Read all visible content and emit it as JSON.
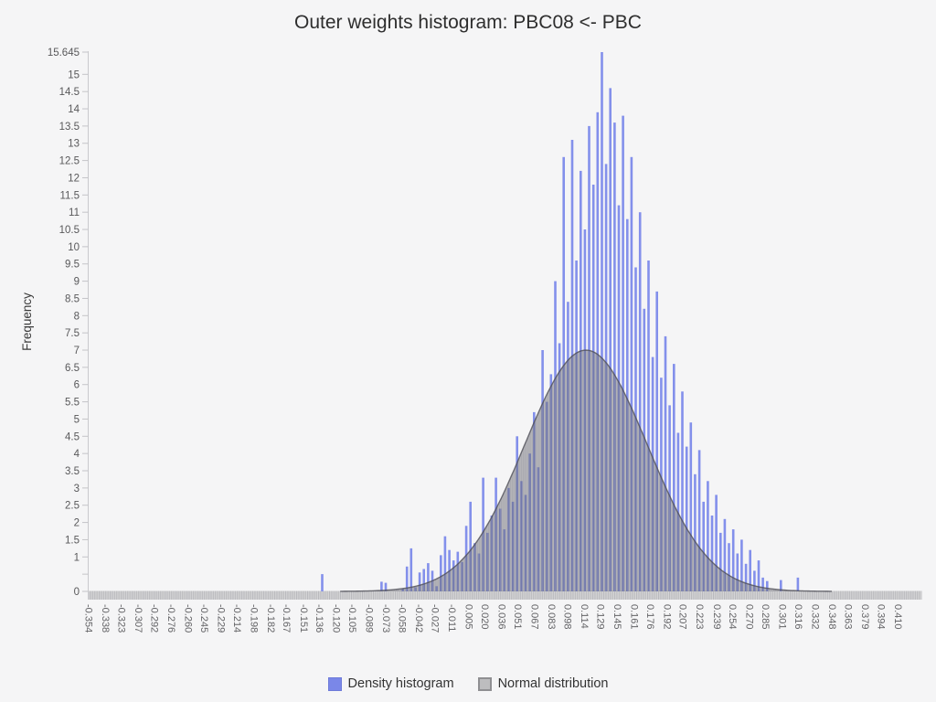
{
  "colors": {
    "background": "#F5F5F6",
    "bar": "#8390EB",
    "bar_legend": "#7A87E8",
    "bar_legend_border": "#6E7BD9",
    "normal_fill": "#ABABB1",
    "normal_fill_rgba": "rgba(98,98,108,0.5)",
    "normal_stripe_rgba": "rgba(255,255,255,0.14)",
    "normal_outline": "#4F4F58",
    "normal_legend": "#BDBDBF",
    "normal_legend_border": "#8F8F92",
    "axis_line": "#C9C9CD",
    "tick_mark": "#C4C4C8",
    "y_tick_label": "#58585A",
    "x_tick_label": "#636366",
    "band_base": "#D4D4D6",
    "band_stripe": "#BABABD",
    "title_text": "#2E2E2E",
    "ylabel_text": "#3A3A3A"
  },
  "legend": [
    {
      "label": "Density histogram"
    },
    {
      "label": "Normal distribution"
    }
  ],
  "chart_data": {
    "type": "bar",
    "title": "Outer weights histogram: PBC08 <- PBC",
    "xlabel": "",
    "ylabel": "Frequency",
    "ylim": [
      0,
      15.645
    ],
    "x_range": [
      -0.354,
      0.41
    ],
    "grid": false,
    "legend_position": "bottom-center",
    "x_tick_labels": [
      "-0.354",
      "-0.338",
      "-0.323",
      "-0.307",
      "-0.292",
      "-0.276",
      "-0.260",
      "-0.245",
      "-0.229",
      "-0.214",
      "-0.198",
      "-0.182",
      "-0.167",
      "-0.151",
      "-0.136",
      "-0.120",
      "-0.105",
      "-0.089",
      "-0.073",
      "-0.058",
      "-0.042",
      "-0.027",
      "-0.011",
      "0.005",
      "0.020",
      "0.036",
      "0.051",
      "0.067",
      "0.083",
      "0.098",
      "0.114",
      "0.129",
      "0.145",
      "0.161",
      "0.176",
      "0.192",
      "0.207",
      "0.223",
      "0.239",
      "0.254",
      "0.270",
      "0.285",
      "0.301",
      "0.316",
      "0.332",
      "0.348",
      "0.363",
      "0.379",
      "0.394",
      "0.410"
    ],
    "y_ticks": [
      {
        "v": 15.645,
        "label": "15.645"
      },
      {
        "v": 15,
        "label": "15"
      },
      {
        "v": 14.5,
        "label": "14.5"
      },
      {
        "v": 14,
        "label": "14"
      },
      {
        "v": 13.5,
        "label": "13.5"
      },
      {
        "v": 13,
        "label": "13"
      },
      {
        "v": 12.5,
        "label": "12.5"
      },
      {
        "v": 12,
        "label": "12"
      },
      {
        "v": 11.5,
        "label": "11.5"
      },
      {
        "v": 11,
        "label": "11"
      },
      {
        "v": 10.5,
        "label": "10.5"
      },
      {
        "v": 10,
        "label": "10"
      },
      {
        "v": 9.5,
        "label": "9.5"
      },
      {
        "v": 9,
        "label": "9"
      },
      {
        "v": 8.5,
        "label": "8.5"
      },
      {
        "v": 8,
        "label": "8"
      },
      {
        "v": 7.5,
        "label": "7.5"
      },
      {
        "v": 7,
        "label": "7"
      },
      {
        "v": 6.5,
        "label": "6.5"
      },
      {
        "v": 6,
        "label": "6"
      },
      {
        "v": 5.5,
        "label": "5.5"
      },
      {
        "v": 5,
        "label": "5"
      },
      {
        "v": 4.5,
        "label": "4.5"
      },
      {
        "v": 4,
        "label": "4"
      },
      {
        "v": 3.5,
        "label": "3.5"
      },
      {
        "v": 3,
        "label": "3"
      },
      {
        "v": 2.5,
        "label": "2.5"
      },
      {
        "v": 2,
        "label": "2"
      },
      {
        "v": 1.5,
        "label": "1.5"
      },
      {
        "v": 1,
        "label": "1"
      },
      {
        "v": 0.5,
        "label": ""
      },
      {
        "v": 0,
        "label": "0"
      }
    ],
    "series": [
      {
        "name": "Density histogram",
        "type": "bars",
        "bin_width": 0.004,
        "bars": [
          [
            -0.134,
            0.5
          ],
          [
            -0.078,
            0.28
          ],
          [
            -0.074,
            0.25
          ],
          [
            -0.058,
            0.08
          ],
          [
            -0.054,
            0.72
          ],
          [
            -0.05,
            1.25
          ],
          [
            -0.046,
            0.12
          ],
          [
            -0.042,
            0.55
          ],
          [
            -0.038,
            0.65
          ],
          [
            -0.034,
            0.82
          ],
          [
            -0.03,
            0.6
          ],
          [
            -0.026,
            0.15
          ],
          [
            -0.022,
            1.05
          ],
          [
            -0.018,
            1.6
          ],
          [
            -0.014,
            1.2
          ],
          [
            -0.01,
            0.9
          ],
          [
            -0.006,
            1.15
          ],
          [
            -0.002,
            0.85
          ],
          [
            0.002,
            1.9
          ],
          [
            0.006,
            2.6
          ],
          [
            0.01,
            1.4
          ],
          [
            0.014,
            1.1
          ],
          [
            0.018,
            3.3
          ],
          [
            0.022,
            1.7
          ],
          [
            0.026,
            2.2
          ],
          [
            0.03,
            3.3
          ],
          [
            0.034,
            2.4
          ],
          [
            0.038,
            1.8
          ],
          [
            0.042,
            3.0
          ],
          [
            0.046,
            2.6
          ],
          [
            0.05,
            4.5
          ],
          [
            0.054,
            3.2
          ],
          [
            0.058,
            2.8
          ],
          [
            0.062,
            4.0
          ],
          [
            0.066,
            5.2
          ],
          [
            0.07,
            3.6
          ],
          [
            0.074,
            7.0
          ],
          [
            0.078,
            5.5
          ],
          [
            0.082,
            6.3
          ],
          [
            0.086,
            9.0
          ],
          [
            0.09,
            7.2
          ],
          [
            0.094,
            12.6
          ],
          [
            0.098,
            8.4
          ],
          [
            0.102,
            13.1
          ],
          [
            0.106,
            9.6
          ],
          [
            0.11,
            12.2
          ],
          [
            0.114,
            10.5
          ],
          [
            0.118,
            13.5
          ],
          [
            0.122,
            11.8
          ],
          [
            0.126,
            13.9
          ],
          [
            0.13,
            15.645
          ],
          [
            0.134,
            12.4
          ],
          [
            0.138,
            14.6
          ],
          [
            0.142,
            13.6
          ],
          [
            0.146,
            11.2
          ],
          [
            0.15,
            13.8
          ],
          [
            0.154,
            10.8
          ],
          [
            0.158,
            12.6
          ],
          [
            0.162,
            9.4
          ],
          [
            0.166,
            11.0
          ],
          [
            0.17,
            8.2
          ],
          [
            0.174,
            9.6
          ],
          [
            0.178,
            6.8
          ],
          [
            0.182,
            8.7
          ],
          [
            0.186,
            6.2
          ],
          [
            0.19,
            7.4
          ],
          [
            0.194,
            5.4
          ],
          [
            0.198,
            6.6
          ],
          [
            0.202,
            4.6
          ],
          [
            0.206,
            5.8
          ],
          [
            0.21,
            4.2
          ],
          [
            0.214,
            4.9
          ],
          [
            0.218,
            3.4
          ],
          [
            0.222,
            4.1
          ],
          [
            0.226,
            2.6
          ],
          [
            0.23,
            3.2
          ],
          [
            0.234,
            2.2
          ],
          [
            0.238,
            2.8
          ],
          [
            0.242,
            1.7
          ],
          [
            0.246,
            2.1
          ],
          [
            0.25,
            1.4
          ],
          [
            0.254,
            1.8
          ],
          [
            0.258,
            1.1
          ],
          [
            0.262,
            1.5
          ],
          [
            0.266,
            0.8
          ],
          [
            0.27,
            1.2
          ],
          [
            0.274,
            0.6
          ],
          [
            0.278,
            0.9
          ],
          [
            0.282,
            0.4
          ],
          [
            0.286,
            0.3
          ],
          [
            0.299,
            0.33
          ],
          [
            0.315,
            0.4
          ]
        ]
      },
      {
        "name": "Normal distribution",
        "type": "normal_curve",
        "mean": 0.115,
        "sd": 0.058,
        "peak_height": 7.0
      }
    ]
  }
}
